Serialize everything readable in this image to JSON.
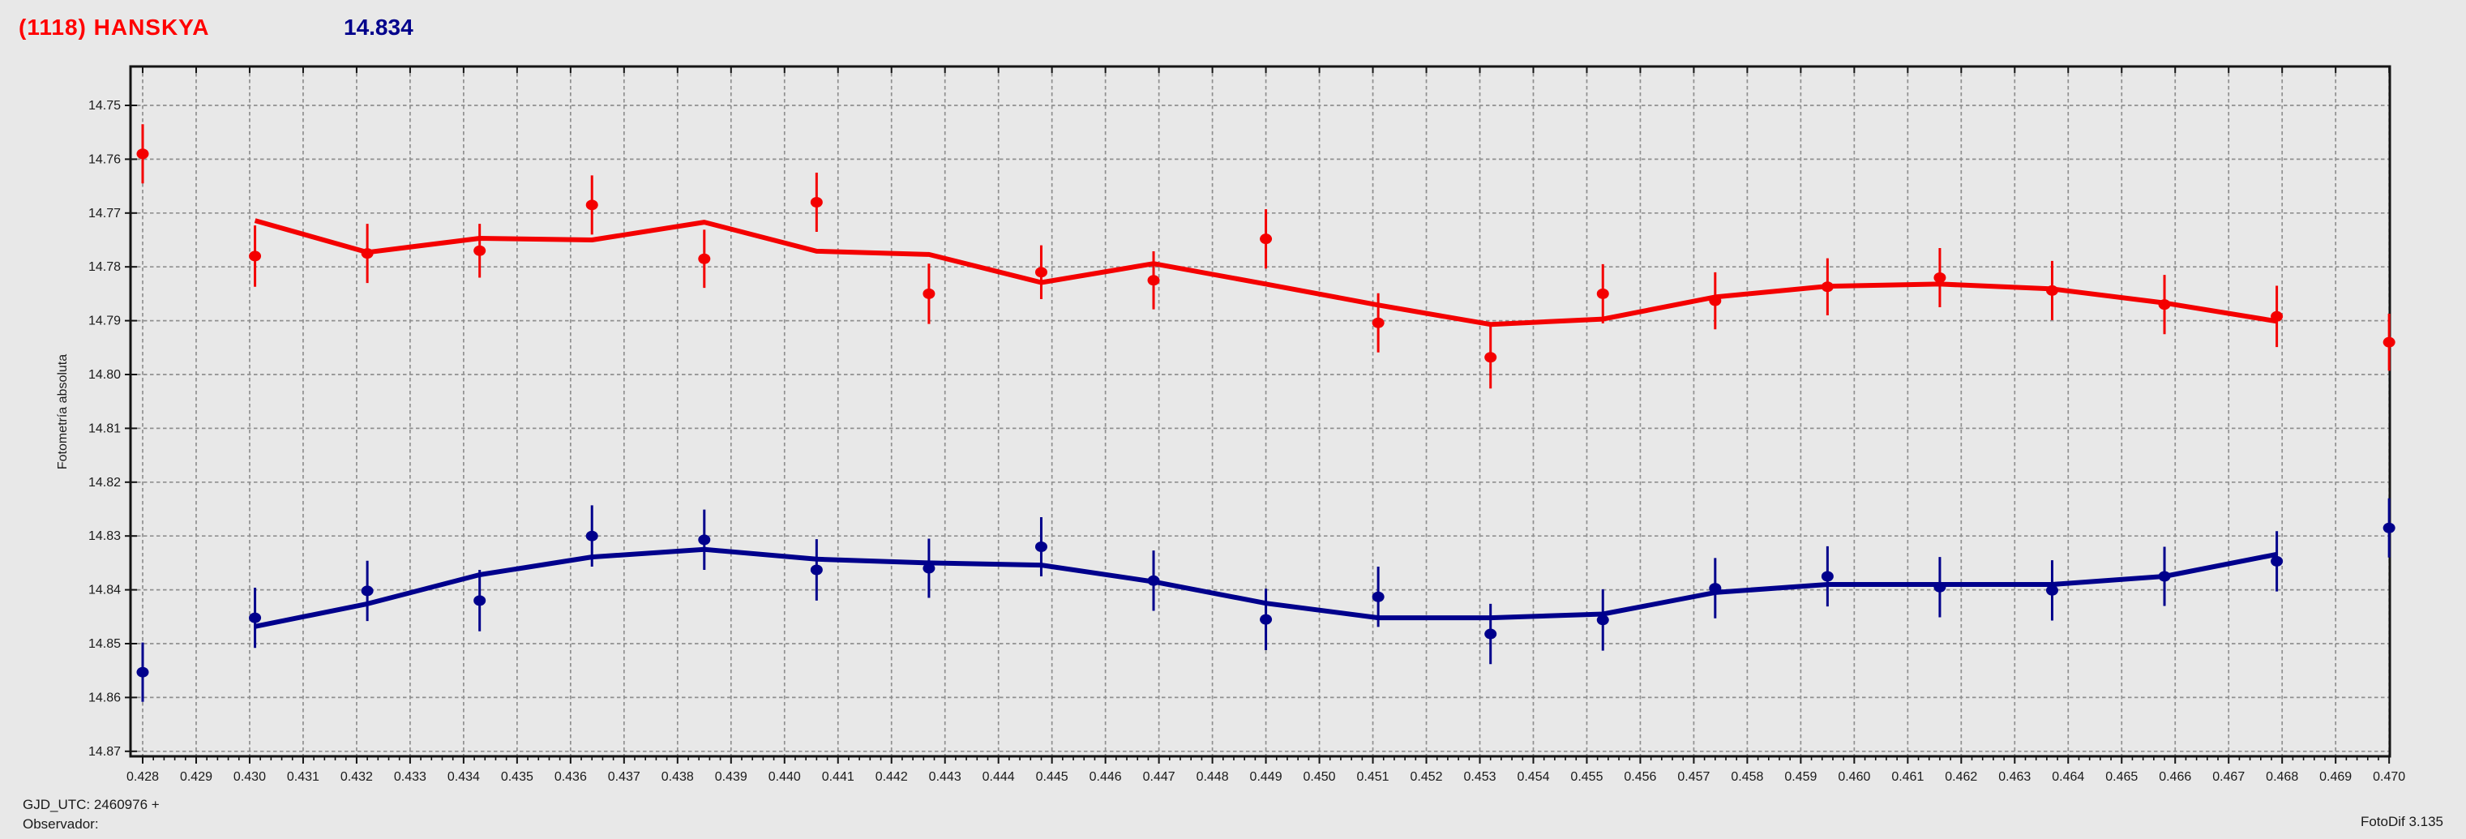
{
  "header": {
    "title": "(1118) HANSKYA",
    "mean_value": "14.834",
    "title_color": "#ff0000",
    "mean_color": "#00008b"
  },
  "footer": {
    "gjd_line": "GJD_UTC: 2460976 +",
    "observer_line": "Observador:",
    "app_version": "FotoDif 3.135"
  },
  "colors": {
    "background": "#e8e8e8",
    "plot_border": "#141414",
    "gridline": "#8f8f8f",
    "series_red": "#f40000",
    "series_blue": "#00008c",
    "tick_text": "#1a1a1a"
  },
  "chart_data": {
    "type": "scatter",
    "title": "(1118) HANSKYA",
    "xlabel": "",
    "ylabel": "Fotometría absoluta",
    "grid": true,
    "y_inverted": true,
    "x_range": [
      0.4279,
      0.4701
    ],
    "y_range": [
      14.7435,
      14.8715
    ],
    "x_tick_labels": [
      "0.428",
      "0.429",
      "0.430",
      "0.431",
      "0.432",
      "0.433",
      "0.434",
      "0.435",
      "0.436",
      "0.437",
      "0.438",
      "0.439",
      "0.440",
      "0.441",
      "0.442",
      "0.443",
      "0.444",
      "0.445",
      "0.446",
      "0.447",
      "0.448",
      "0.449",
      "0.450",
      "0.451",
      "0.452",
      "0.453",
      "0.454",
      "0.455",
      "0.456",
      "0.457",
      "0.458",
      "0.459",
      "0.460",
      "0.461",
      "0.462",
      "0.463",
      "0.464",
      "0.465",
      "0.466",
      "0.467",
      "0.468",
      "0.469",
      "0.470"
    ],
    "y_tick_labels": [
      "14.75",
      "14.76",
      "14.77",
      "14.78",
      "14.79",
      "14.80",
      "14.81",
      "14.82",
      "14.83",
      "14.84",
      "14.85",
      "14.86",
      "14.87"
    ],
    "x_minor_step": 0.0002,
    "series": [
      {
        "name": "red-measurements",
        "kind": "points-with-errorbars",
        "color": "#f40000",
        "points": [
          [
            0.428,
            14.759,
            0.0055
          ],
          [
            0.4301,
            14.778,
            0.0057
          ],
          [
            0.4322,
            14.7775,
            0.0055
          ],
          [
            0.4343,
            14.777,
            0.005
          ],
          [
            0.4364,
            14.7685,
            0.0055
          ],
          [
            0.4385,
            14.7785,
            0.0054
          ],
          [
            0.4406,
            14.768,
            0.0055
          ],
          [
            0.4427,
            14.785,
            0.0056
          ],
          [
            0.4448,
            14.781,
            0.005
          ],
          [
            0.4469,
            14.7825,
            0.0054
          ],
          [
            0.449,
            14.7748,
            0.0055
          ],
          [
            0.4511,
            14.7904,
            0.0055
          ],
          [
            0.4532,
            14.7968,
            0.0058
          ],
          [
            0.4553,
            14.785,
            0.0055
          ],
          [
            0.4574,
            14.7863,
            0.0053
          ],
          [
            0.4595,
            14.7837,
            0.0053
          ],
          [
            0.4616,
            14.782,
            0.0055
          ],
          [
            0.4637,
            14.7844,
            0.0055
          ],
          [
            0.4658,
            14.787,
            0.0055
          ],
          [
            0.4679,
            14.7892,
            0.0057
          ],
          [
            0.47,
            14.794,
            0.0053
          ]
        ]
      },
      {
        "name": "red-average-line",
        "kind": "line",
        "color": "#f40000",
        "points": [
          [
            0.4301,
            14.7714
          ],
          [
            0.4322,
            14.7773
          ],
          [
            0.4343,
            14.7747
          ],
          [
            0.4364,
            14.775
          ],
          [
            0.4385,
            14.7717
          ],
          [
            0.4406,
            14.7771
          ],
          [
            0.4427,
            14.7777
          ],
          [
            0.4448,
            14.7829
          ],
          [
            0.4469,
            14.7794
          ],
          [
            0.449,
            14.7832
          ],
          [
            0.4511,
            14.7871
          ],
          [
            0.4532,
            14.7907
          ],
          [
            0.4553,
            14.7897
          ],
          [
            0.4574,
            14.7856
          ],
          [
            0.4595,
            14.7836
          ],
          [
            0.4616,
            14.7832
          ],
          [
            0.4637,
            14.7841
          ],
          [
            0.4658,
            14.7867
          ],
          [
            0.4679,
            14.7901
          ]
        ]
      },
      {
        "name": "blue-measurements",
        "kind": "points-with-errorbars",
        "color": "#00008c",
        "points": [
          [
            0.428,
            14.8553,
            0.0055
          ],
          [
            0.4301,
            14.8452,
            0.0056
          ],
          [
            0.4322,
            14.8402,
            0.0056
          ],
          [
            0.4343,
            14.842,
            0.0057
          ],
          [
            0.4364,
            14.83,
            0.0057
          ],
          [
            0.4385,
            14.8307,
            0.0056
          ],
          [
            0.4406,
            14.8363,
            0.0057
          ],
          [
            0.4427,
            14.836,
            0.0055
          ],
          [
            0.4448,
            14.832,
            0.0055
          ],
          [
            0.4469,
            14.8383,
            0.0056
          ],
          [
            0.449,
            14.8455,
            0.0057
          ],
          [
            0.4511,
            14.8413,
            0.0056
          ],
          [
            0.4532,
            14.8482,
            0.0056
          ],
          [
            0.4553,
            14.8456,
            0.0057
          ],
          [
            0.4574,
            14.8397,
            0.0056
          ],
          [
            0.4595,
            14.8375,
            0.0056
          ],
          [
            0.4616,
            14.8395,
            0.0056
          ],
          [
            0.4637,
            14.8401,
            0.0056
          ],
          [
            0.4658,
            14.8375,
            0.0055
          ],
          [
            0.4679,
            14.8347,
            0.0056
          ],
          [
            0.47,
            14.8285,
            0.0055
          ]
        ]
      },
      {
        "name": "blue-average-line",
        "kind": "line",
        "color": "#00008c",
        "points": [
          [
            0.4301,
            14.8468
          ],
          [
            0.4322,
            14.8426
          ],
          [
            0.4343,
            14.8372
          ],
          [
            0.4364,
            14.8339
          ],
          [
            0.4385,
            14.8325
          ],
          [
            0.4406,
            14.8343
          ],
          [
            0.4427,
            14.835
          ],
          [
            0.4448,
            14.8354
          ],
          [
            0.4469,
            14.8385
          ],
          [
            0.449,
            14.8425
          ],
          [
            0.4511,
            14.8452
          ],
          [
            0.4532,
            14.8452
          ],
          [
            0.4553,
            14.8445
          ],
          [
            0.4574,
            14.8405
          ],
          [
            0.4595,
            14.839
          ],
          [
            0.4616,
            14.839
          ],
          [
            0.4637,
            14.839
          ],
          [
            0.4658,
            14.8375
          ],
          [
            0.4679,
            14.8334
          ]
        ]
      }
    ],
    "legend": null
  }
}
